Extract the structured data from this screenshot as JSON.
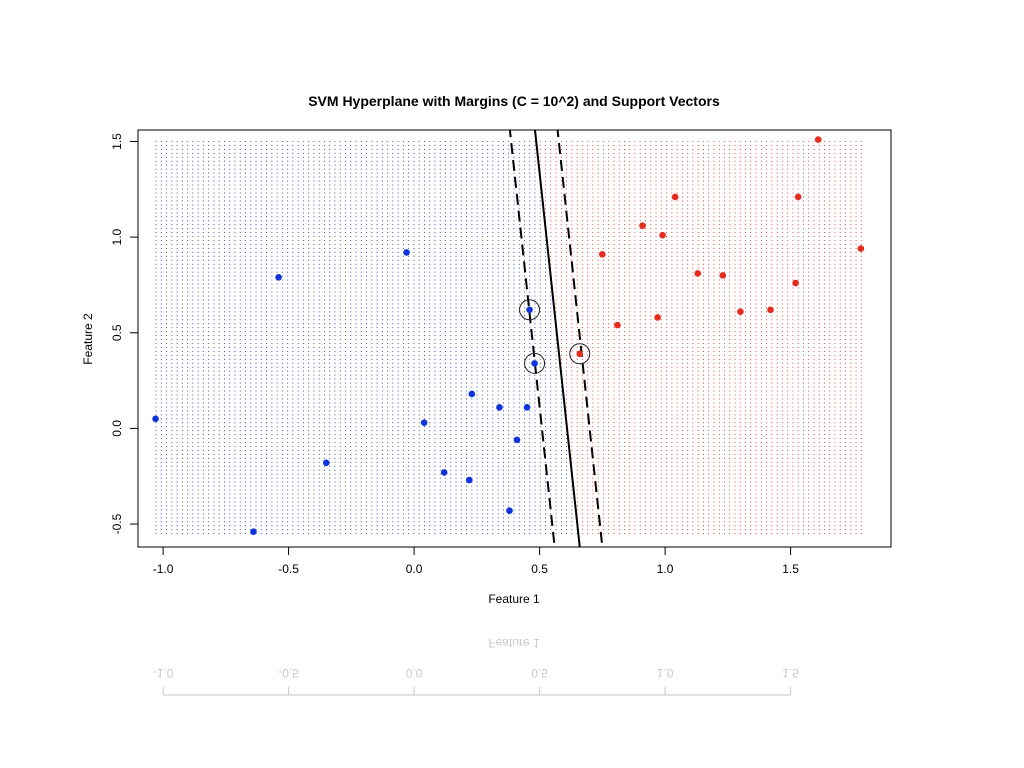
{
  "chart_data": {
    "type": "scatter",
    "title": "SVM Hyperplane with Margins (C = 10^2) and Support Vectors",
    "xlabel": "Feature 1",
    "ylabel": "Feature 2",
    "xlim": [
      -1.1,
      1.9
    ],
    "ylim": [
      -0.62,
      1.56
    ],
    "x_ticks": [
      -1.0,
      -0.5,
      0.0,
      0.5,
      1.0,
      1.5
    ],
    "x_tick_labels": [
      "-1.0",
      "-0.5",
      "0.0",
      "0.5",
      "1.0",
      "1.5"
    ],
    "y_ticks": [
      -0.5,
      0.0,
      0.5,
      1.0,
      1.5
    ],
    "y_tick_labels": [
      "-0.5",
      "0.0",
      "0.5",
      "1.0",
      "1.5"
    ],
    "legend": "none",
    "grid": false,
    "background_grid": {
      "x_range": [
        -1.03,
        1.78
      ],
      "y_range": [
        -0.55,
        1.5
      ],
      "nx": 135,
      "ny": 100,
      "colors": {
        "negative": "#1a2ea8",
        "positive": "#e0281e"
      }
    },
    "decision_boundary": {
      "x_at_y_top": 0.48,
      "x_at_y_bottom": 0.66,
      "y_top": 1.58,
      "y_bottom": -0.62
    },
    "margin_lower": {
      "x_at_y_top": 0.38,
      "x_at_y_bottom": 0.56
    },
    "margin_upper": {
      "x_at_y_top": 0.57,
      "x_at_y_bottom": 0.75
    },
    "series": [
      {
        "color": "#1133dd",
        "points": [
          [
            -1.03,
            0.05
          ],
          [
            -0.54,
            0.79
          ],
          [
            -0.64,
            -0.54
          ],
          [
            -0.35,
            -0.18
          ],
          [
            -0.03,
            0.92
          ],
          [
            0.04,
            0.03
          ],
          [
            0.12,
            -0.23
          ],
          [
            0.22,
            -0.27
          ],
          [
            0.23,
            0.18
          ],
          [
            0.34,
            0.11
          ],
          [
            0.38,
            -0.43
          ],
          [
            0.41,
            -0.06
          ],
          [
            0.45,
            0.11
          ],
          [
            0.46,
            0.62
          ],
          [
            0.48,
            0.34
          ]
        ]
      },
      {
        "color": "#e62b1f",
        "points": [
          [
            0.66,
            0.39
          ],
          [
            0.75,
            0.91
          ],
          [
            0.81,
            0.54
          ],
          [
            0.91,
            1.06
          ],
          [
            0.97,
            0.58
          ],
          [
            0.99,
            1.01
          ],
          [
            1.04,
            1.21
          ],
          [
            1.13,
            0.81
          ],
          [
            1.23,
            0.8
          ],
          [
            1.3,
            0.61
          ],
          [
            1.42,
            0.62
          ],
          [
            1.52,
            0.76
          ],
          [
            1.53,
            1.21
          ],
          [
            1.61,
            1.51
          ],
          [
            1.78,
            0.94
          ]
        ]
      }
    ],
    "support_vectors": [
      [
        0.46,
        0.62
      ],
      [
        0.48,
        0.34
      ],
      [
        0.66,
        0.39
      ]
    ]
  }
}
